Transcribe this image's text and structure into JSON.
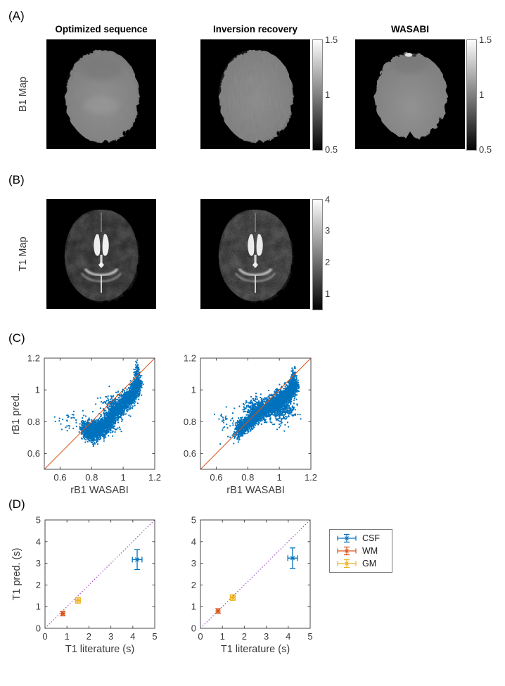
{
  "panel_a": {
    "label": "(A)",
    "row_label": "B1 Map",
    "col_titles": [
      "Optimized sequence",
      "Inversion recovery",
      "WASABI"
    ],
    "colorbar": {
      "ticks": [
        "1.5",
        "1",
        "0.5"
      ],
      "range": [
        0.5,
        1.5
      ]
    }
  },
  "panel_b": {
    "label": "(B)",
    "row_label": "T1 Map",
    "colorbar": {
      "ticks": [
        "4",
        "3",
        "2",
        "1"
      ],
      "range": [
        0.5,
        4
      ]
    }
  },
  "panel_c": {
    "label": "(C)"
  },
  "panel_d": {
    "label": "(D)",
    "legend": {
      "entries": [
        {
          "label": "CSF",
          "color": "#0072BD"
        },
        {
          "label": "WM",
          "color": "#D95319"
        },
        {
          "label": "GM",
          "color": "#EDB120"
        }
      ]
    }
  },
  "chart_data": [
    {
      "id": "rb1_scatter_optimized",
      "type": "scatter",
      "xlabel": "rB1 WASABI",
      "ylabel": "rB1 pred.",
      "xlim": [
        0.5,
        1.2
      ],
      "ylim": [
        0.5,
        1.2
      ],
      "xticks": [
        0.6,
        0.8,
        1,
        1.2
      ],
      "yticks": [
        0.6,
        0.8,
        1,
        1.2
      ],
      "grid": false,
      "point_color": "#0072BD",
      "identity_line": {
        "from": [
          0.5,
          0.5
        ],
        "to": [
          1.2,
          1.2
        ],
        "color": "#D95319",
        "style": "solid"
      },
      "clusters": [
        {
          "kind": "backbone",
          "n": 2600,
          "sx": 0.013,
          "sy": 0.03,
          "seed": 7,
          "path": [
            [
              0.745,
              0.755
            ],
            [
              0.78,
              0.735
            ],
            [
              0.81,
              0.735
            ],
            [
              0.84,
              0.745
            ],
            [
              0.87,
              0.765
            ],
            [
              0.9,
              0.795
            ],
            [
              0.93,
              0.83
            ],
            [
              0.96,
              0.865
            ],
            [
              0.99,
              0.9
            ],
            [
              1.02,
              0.935
            ],
            [
              1.05,
              0.965
            ],
            [
              1.08,
              1.0
            ],
            [
              1.1,
              1.04
            ]
          ]
        },
        {
          "kind": "blob",
          "n": 500,
          "cx": 0.85,
          "cy": 0.765,
          "sx": 0.045,
          "sy": 0.022,
          "seed": 21
        },
        {
          "kind": "blob",
          "n": 250,
          "cx": 0.95,
          "cy": 0.9,
          "sx": 0.04,
          "sy": 0.04,
          "seed": 31
        },
        {
          "kind": "blob",
          "n": 130,
          "cx": 1.09,
          "cy": 1.08,
          "sx": 0.008,
          "sy": 0.05,
          "seed": 41
        },
        {
          "kind": "blob",
          "n": 30,
          "cx": 0.65,
          "cy": 0.79,
          "sx": 0.042,
          "sy": 0.038,
          "seed": 51
        }
      ]
    },
    {
      "id": "rb1_scatter_inversion_recovery",
      "type": "scatter",
      "xlabel": "rB1 WASABI",
      "ylabel": "",
      "xlim": [
        0.5,
        1.2
      ],
      "ylim": [
        0.5,
        1.2
      ],
      "xticks": [
        0.6,
        0.8,
        1,
        1.2
      ],
      "yticks": [
        0.6,
        0.8,
        1,
        1.2
      ],
      "grid": false,
      "point_color": "#0072BD",
      "identity_line": {
        "from": [
          0.5,
          0.5
        ],
        "to": [
          1.2,
          1.2
        ],
        "color": "#D95319",
        "style": "solid"
      },
      "clusters": [
        {
          "kind": "backbone",
          "n": 2600,
          "sx": 0.013,
          "sy": 0.028,
          "seed": 9,
          "path": [
            [
              0.73,
              0.74
            ],
            [
              0.77,
              0.77
            ],
            [
              0.81,
              0.8
            ],
            [
              0.85,
              0.835
            ],
            [
              0.89,
              0.865
            ],
            [
              0.93,
              0.895
            ],
            [
              0.97,
              0.925
            ],
            [
              1.01,
              0.95
            ],
            [
              1.05,
              0.98
            ],
            [
              1.08,
              1.005
            ],
            [
              1.1,
              1.04
            ]
          ]
        },
        {
          "kind": "blob",
          "n": 350,
          "cx": 1.0,
          "cy": 0.875,
          "sx": 0.05,
          "sy": 0.03,
          "seed": 23
        },
        {
          "kind": "blob",
          "n": 250,
          "cx": 0.85,
          "cy": 0.885,
          "sx": 0.04,
          "sy": 0.03,
          "seed": 33
        },
        {
          "kind": "blob",
          "n": 80,
          "cx": 1.09,
          "cy": 1.07,
          "sx": 0.008,
          "sy": 0.035,
          "seed": 43
        },
        {
          "kind": "blob",
          "n": 32,
          "cx": 0.655,
          "cy": 0.8,
          "sx": 0.042,
          "sy": 0.04,
          "seed": 53
        },
        {
          "kind": "blob",
          "n": 25,
          "cx": 0.99,
          "cy": 0.795,
          "sx": 0.035,
          "sy": 0.02,
          "seed": 63
        }
      ]
    },
    {
      "id": "t1_errorbar_optimized",
      "type": "errorbar",
      "xlabel": "T1 literature (s)",
      "ylabel": "T1 pred. (s)",
      "xlim": [
        0,
        5
      ],
      "ylim": [
        0,
        5
      ],
      "xticks": [
        0,
        1,
        2,
        3,
        4,
        5
      ],
      "yticks": [
        0,
        1,
        2,
        3,
        4,
        5
      ],
      "grid": false,
      "identity_line": {
        "from": [
          0,
          0
        ],
        "to": [
          5,
          5
        ],
        "color": "#A04EC3",
        "style": "dotted"
      },
      "points": [
        {
          "series": "CSF",
          "x": 4.2,
          "y": 3.17,
          "xerr": 0.22,
          "yerr": 0.46,
          "color": "#0072BD"
        },
        {
          "series": "WM",
          "x": 0.81,
          "y": 0.68,
          "xerr": 0.06,
          "yerr": 0.1,
          "color": "#D95319"
        },
        {
          "series": "GM",
          "x": 1.5,
          "y": 1.29,
          "xerr": 0.11,
          "yerr": 0.13,
          "color": "#EDB120"
        }
      ]
    },
    {
      "id": "t1_errorbar_inversion_recovery",
      "type": "errorbar",
      "xlabel": "T1 literature (s)",
      "ylabel": "",
      "xlim": [
        0,
        5
      ],
      "ylim": [
        0,
        5
      ],
      "xticks": [
        0,
        1,
        2,
        3,
        4,
        5
      ],
      "yticks": [
        0,
        1,
        2,
        3,
        4,
        5
      ],
      "grid": false,
      "identity_line": {
        "from": [
          0,
          0
        ],
        "to": [
          5,
          5
        ],
        "color": "#A04EC3",
        "style": "dotted"
      },
      "points": [
        {
          "series": "CSF",
          "x": 4.2,
          "y": 3.24,
          "xerr": 0.22,
          "yerr": 0.47,
          "color": "#0072BD"
        },
        {
          "series": "WM",
          "x": 0.8,
          "y": 0.8,
          "xerr": 0.06,
          "yerr": 0.1,
          "color": "#D95319"
        },
        {
          "series": "GM",
          "x": 1.47,
          "y": 1.42,
          "xerr": 0.11,
          "yerr": 0.13,
          "color": "#EDB120"
        }
      ]
    }
  ]
}
